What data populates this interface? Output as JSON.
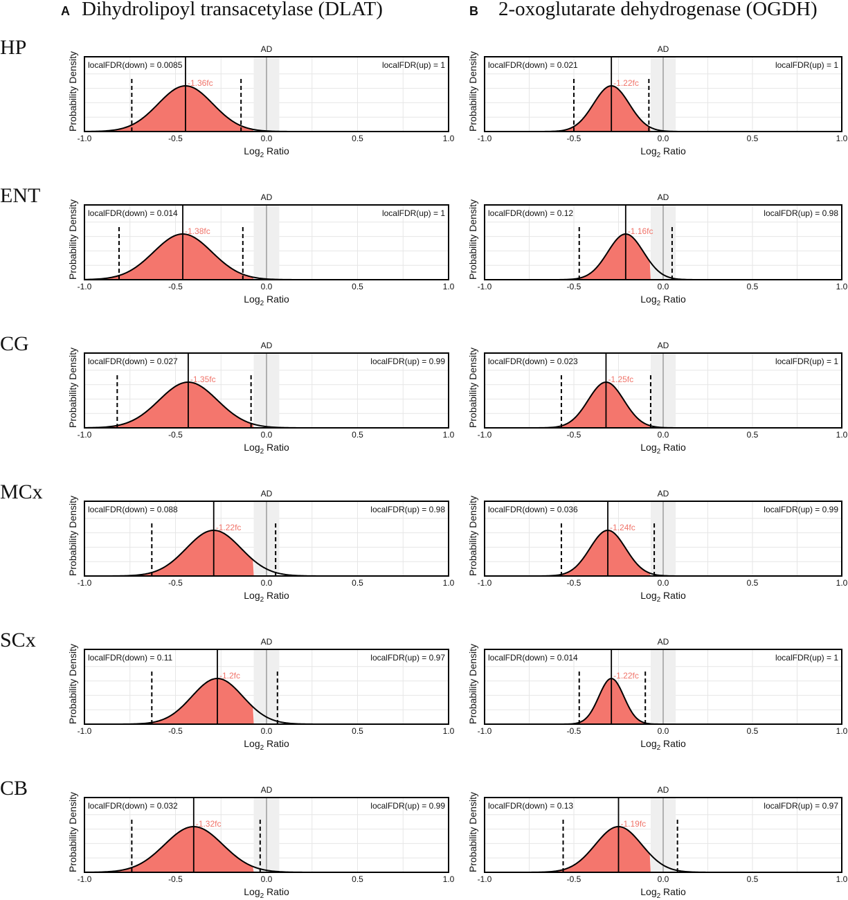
{
  "figure": {
    "panels": [
      {
        "letter": "A",
        "title": "Dihydrolipoyl transacetylase (DLAT)"
      },
      {
        "letter": "B",
        "title": "2-oxoglutarate dehydrogenase (OGDH)"
      }
    ],
    "rows": [
      "HP",
      "ENT",
      "CG",
      "MCx",
      "SCx",
      "CB"
    ]
  },
  "colors": {
    "fill": "#f4766d",
    "curve": "#000000",
    "grid": "#e6e6e6",
    "ad_band": "#efefef",
    "zero_line": "#9a9a9a",
    "fc_text": "#f0746a"
  },
  "chart_data": [
    {
      "type": "area",
      "panel": "A",
      "region": "HP",
      "title": "AD",
      "xlabel": "Log2 Ratio",
      "ylabel": "Probability Density",
      "xlim": [
        -1.0,
        1.0
      ],
      "x_ticks": [
        "-1.0",
        "-0.5",
        "0.0",
        "0.5",
        "1.0"
      ],
      "band": [
        -0.07,
        0.07
      ],
      "mean": -0.445,
      "sd": 0.15,
      "ci": [
        -0.74,
        -0.14
      ],
      "fc_label": "-1.36fc",
      "fdr_down": "localFDR(down) = 0.0085",
      "fdr_up": "localFDR(up) = 1"
    },
    {
      "type": "area",
      "panel": "A",
      "region": "ENT",
      "title": "AD",
      "xlabel": "Log2 Ratio",
      "ylabel": "Probability Density",
      "xlim": [
        -1.0,
        1.0
      ],
      "x_ticks": [
        "-1.0",
        "-0.5",
        "0.0",
        "0.5",
        "1.0"
      ],
      "band": [
        -0.07,
        0.07
      ],
      "mean": -0.46,
      "sd": 0.16,
      "ci": [
        -0.81,
        -0.13
      ],
      "fc_label": "-1.38fc",
      "fdr_down": "localFDR(down) = 0.014",
      "fdr_up": "localFDR(up) = 1"
    },
    {
      "type": "area",
      "panel": "A",
      "region": "CG",
      "title": "AD",
      "xlabel": "Log2 Ratio",
      "ylabel": "Probability Density",
      "xlim": [
        -1.0,
        1.0
      ],
      "x_ticks": [
        "-1.0",
        "-0.5",
        "0.0",
        "0.5",
        "1.0"
      ],
      "band": [
        -0.07,
        0.07
      ],
      "mean": -0.43,
      "sd": 0.16,
      "ci": [
        -0.82,
        -0.085
      ],
      "fc_label": "-1.35fc",
      "fdr_down": "localFDR(down) = 0.027",
      "fdr_up": "localFDR(up) = 0.99"
    },
    {
      "type": "area",
      "panel": "A",
      "region": "MCx",
      "title": "AD",
      "xlabel": "Log2 Ratio",
      "ylabel": "Probability Density",
      "xlim": [
        -1.0,
        1.0
      ],
      "x_ticks": [
        "-1.0",
        "-0.5",
        "0.0",
        "0.5",
        "1.0"
      ],
      "band": [
        -0.07,
        0.07
      ],
      "mean": -0.29,
      "sd": 0.15,
      "ci": [
        -0.63,
        0.05
      ],
      "fc_label": "-1.22fc",
      "fdr_down": "localFDR(down) = 0.088",
      "fdr_up": "localFDR(up) = 0.98"
    },
    {
      "type": "area",
      "panel": "A",
      "region": "SCx",
      "title": "AD",
      "xlabel": "Log2 Ratio",
      "ylabel": "Probability Density",
      "xlim": [
        -1.0,
        1.0
      ],
      "x_ticks": [
        "-1.0",
        "-0.5",
        "0.0",
        "0.5",
        "1.0"
      ],
      "band": [
        -0.07,
        0.07
      ],
      "mean": -0.27,
      "sd": 0.14,
      "ci": [
        -0.63,
        0.06
      ],
      "fc_label": "-1.2fc",
      "fdr_down": "localFDR(down) = 0.11",
      "fdr_up": "localFDR(up) = 0.97"
    },
    {
      "type": "area",
      "panel": "A",
      "region": "CB",
      "title": "AD",
      "xlabel": "Log2 Ratio",
      "ylabel": "Probability Density",
      "xlim": [
        -1.0,
        1.0
      ],
      "x_ticks": [
        "-1.0",
        "-0.5",
        "0.0",
        "0.5",
        "1.0"
      ],
      "band": [
        -0.07,
        0.07
      ],
      "mean": -0.4,
      "sd": 0.16,
      "ci": [
        -0.74,
        -0.035
      ],
      "fc_label": "-1.32fc",
      "fdr_down": "localFDR(down) = 0.032",
      "fdr_up": "localFDR(up) = 0.99"
    },
    {
      "type": "area",
      "panel": "B",
      "region": "HP",
      "title": "AD",
      "xlabel": "Log2 Ratio",
      "ylabel": "Probability Density",
      "xlim": [
        -1.0,
        1.0
      ],
      "x_ticks": [
        "-1.0",
        "-0.5",
        "0.0",
        "0.5",
        "1.0"
      ],
      "band": [
        -0.07,
        0.07
      ],
      "mean": -0.29,
      "sd": 0.1,
      "ci": [
        -0.5,
        -0.08
      ],
      "fc_label": "-1.22fc",
      "fdr_down": "localFDR(down) = 0.021",
      "fdr_up": "localFDR(up) = 1"
    },
    {
      "type": "area",
      "panel": "B",
      "region": "ENT",
      "title": "AD",
      "xlabel": "Log2 Ratio",
      "ylabel": "Probability Density",
      "xlim": [
        -1.0,
        1.0
      ],
      "x_ticks": [
        "-1.0",
        "-0.5",
        "0.0",
        "0.5",
        "1.0"
      ],
      "band": [
        -0.07,
        0.07
      ],
      "mean": -0.21,
      "sd": 0.1,
      "ci": [
        -0.47,
        0.05
      ],
      "fc_label": "-1.16fc",
      "fdr_down": "localFDR(down) = 0.12",
      "fdr_up": "localFDR(up) = 0.98"
    },
    {
      "type": "area",
      "panel": "B",
      "region": "CG",
      "title": "AD",
      "xlabel": "Log2 Ratio",
      "ylabel": "Probability Density",
      "xlim": [
        -1.0,
        1.0
      ],
      "x_ticks": [
        "-1.0",
        "-0.5",
        "0.0",
        "0.5",
        "1.0"
      ],
      "band": [
        -0.07,
        0.07
      ],
      "mean": -0.32,
      "sd": 0.1,
      "ci": [
        -0.57,
        -0.07
      ],
      "fc_label": "-1.25fc",
      "fdr_down": "localFDR(down) = 0.023",
      "fdr_up": "localFDR(up) = 1"
    },
    {
      "type": "area",
      "panel": "B",
      "region": "MCx",
      "title": "AD",
      "xlabel": "Log2 Ratio",
      "ylabel": "Probability Density",
      "xlim": [
        -1.0,
        1.0
      ],
      "x_ticks": [
        "-1.0",
        "-0.5",
        "0.0",
        "0.5",
        "1.0"
      ],
      "band": [
        -0.07,
        0.07
      ],
      "mean": -0.31,
      "sd": 0.1,
      "ci": [
        -0.57,
        -0.05
      ],
      "fc_label": "-1.24fc",
      "fdr_down": "localFDR(down) = 0.036",
      "fdr_up": "localFDR(up) = 0.99"
    },
    {
      "type": "area",
      "panel": "B",
      "region": "SCx",
      "title": "AD",
      "xlabel": "Log2 Ratio",
      "ylabel": "Probability Density",
      "xlim": [
        -1.0,
        1.0
      ],
      "x_ticks": [
        "-1.0",
        "-0.5",
        "0.0",
        "0.5",
        "1.0"
      ],
      "band": [
        -0.07,
        0.07
      ],
      "mean": -0.29,
      "sd": 0.07,
      "ci": [
        -0.47,
        -0.1
      ],
      "fc_label": "-1.22fc",
      "fdr_down": "localFDR(down) = 0.014",
      "fdr_up": "localFDR(up) = 1"
    },
    {
      "type": "area",
      "panel": "B",
      "region": "CB",
      "title": "AD",
      "xlabel": "Log2 Ratio",
      "ylabel": "Probability Density",
      "xlim": [
        -1.0,
        1.0
      ],
      "x_ticks": [
        "-1.0",
        "-0.5",
        "0.0",
        "0.5",
        "1.0"
      ],
      "band": [
        -0.07,
        0.07
      ],
      "mean": -0.25,
      "sd": 0.13,
      "ci": [
        -0.56,
        0.08
      ],
      "fc_label": "-1.19fc",
      "fdr_down": "localFDR(down) = 0.13",
      "fdr_up": "localFDR(up) = 0.97"
    }
  ]
}
